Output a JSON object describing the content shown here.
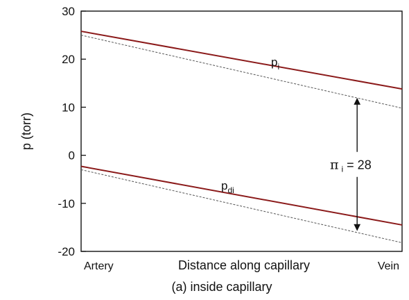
{
  "caption": "(a) inside capillary",
  "chart_data": {
    "type": "line",
    "xlabel": "Distance along capillary",
    "ylabel": "p (torr)",
    "x_start_label": "Artery",
    "x_end_label": "Vein",
    "xlim": [
      0,
      1
    ],
    "ylim": [
      -20,
      30
    ],
    "yticks": [
      -20,
      -10,
      0,
      10,
      20,
      30
    ],
    "grid": false,
    "series": [
      {
        "name": "p",
        "subscript": "i",
        "color": "#8b1a1a",
        "style": "solid",
        "x": [
          0,
          1
        ],
        "y": [
          25.8,
          13.8
        ]
      },
      {
        "color": "#555555",
        "style": "dashed",
        "x": [
          0,
          1
        ],
        "y": [
          25.0,
          9.8
        ]
      },
      {
        "name": "p",
        "subscript": "di",
        "color": "#8b1a1a",
        "style": "solid",
        "x": [
          0,
          1
        ],
        "y": [
          -2.3,
          -14.5
        ]
      },
      {
        "color": "#555555",
        "style": "dashed",
        "x": [
          0,
          1
        ],
        "y": [
          -3.0,
          -18.2
        ]
      }
    ],
    "annotation": {
      "symbol": "π",
      "subscript": "i",
      "text": " = 28",
      "x": 0.86,
      "y_from": 11.8,
      "y_to": -15.6
    }
  }
}
